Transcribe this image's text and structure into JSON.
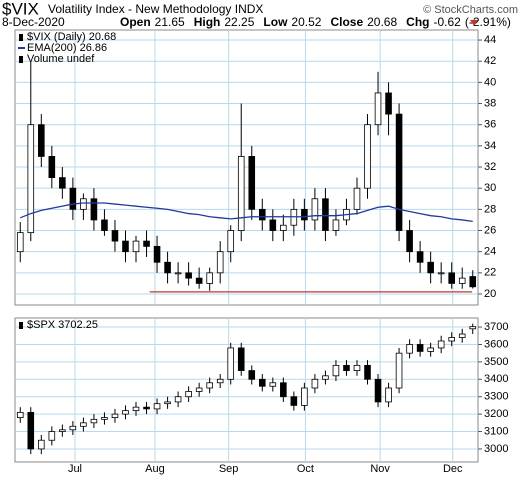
{
  "header": {
    "title": "$VIX",
    "subtitle": "Volatility Index - New Methodology  INDX",
    "credit": "© StockCharts.com",
    "date": "8-Dec-2020",
    "stats": [
      {
        "label": "Open",
        "value": 21.65
      },
      {
        "label": "High",
        "value": 22.25
      },
      {
        "label": "Low",
        "value": 20.52
      },
      {
        "label": "Close",
        "value": 20.68
      },
      {
        "label": "Chg",
        "value": -0.62
      }
    ],
    "change_pct": "(-2.91%)"
  },
  "chart_data": [
    {
      "type": "candlestick",
      "ylim": [
        18.96,
        44.95
      ],
      "yticks": [
        20,
        22,
        24,
        26,
        28,
        30,
        32,
        34,
        36,
        38,
        40,
        42,
        44
      ],
      "xlim": [
        -0.5,
        43.5
      ],
      "xticks": [
        5.2,
        12.8,
        19.8,
        27.1,
        34.2,
        41.1
      ],
      "grid": true,
      "series": [
        {
          "name": "$VIX (Daily) 20.68",
          "color": "#000000",
          "open": [
            24,
            25.8,
            36,
            33,
            31,
            30,
            28,
            29,
            27,
            26,
            25,
            24,
            25,
            24.5,
            23,
            22,
            22,
            21.5,
            21,
            22,
            24,
            26,
            33,
            28,
            27,
            26,
            26.5,
            28,
            27,
            29,
            26,
            27,
            28,
            30,
            36,
            39,
            37,
            26,
            24,
            23,
            22,
            22,
            21,
            21.65
          ],
          "high": [
            26.8,
            42,
            37,
            34,
            32,
            31,
            29.5,
            30,
            28,
            27,
            26,
            25.5,
            26,
            25.5,
            24,
            23,
            23,
            22.5,
            22.5,
            25,
            26.5,
            38,
            34,
            29,
            28,
            27.5,
            29,
            29,
            30,
            30,
            28,
            29,
            31,
            37,
            41,
            40,
            38,
            27,
            25,
            24,
            23,
            23,
            22.5,
            22.25
          ],
          "low": [
            23,
            25,
            32,
            30,
            29,
            27,
            27,
            26,
            25.5,
            24,
            23,
            23,
            23.5,
            22,
            21,
            21,
            20.8,
            20.5,
            20.3,
            21,
            23,
            25,
            27,
            26,
            25,
            25,
            25.5,
            26,
            26,
            25,
            25.5,
            26.5,
            27.5,
            29,
            35,
            35,
            25,
            23,
            22,
            21,
            21,
            20.5,
            20.5,
            20.52
          ],
          "close": [
            25.8,
            36,
            33,
            31,
            30,
            28,
            29,
            27,
            26,
            25,
            24,
            25,
            24.5,
            23,
            22,
            22,
            21.5,
            21,
            22,
            24,
            26,
            33,
            28,
            27,
            26,
            26.5,
            28,
            27,
            29,
            26,
            27,
            28,
            30,
            36,
            39,
            37,
            26,
            24,
            23,
            22,
            22,
            21,
            21.5,
            20.68
          ]
        },
        {
          "name": "EMA(200) 26.86",
          "type": "line",
          "color": "#1f3a9e",
          "values": [
            27.2,
            27.6,
            27.9,
            28.1,
            28.3,
            28.5,
            28.6,
            28.6,
            28.6,
            28.5,
            28.4,
            28.3,
            28.2,
            28.1,
            28.0,
            27.8,
            27.6,
            27.5,
            27.3,
            27.2,
            27.1,
            27.2,
            27.3,
            27.3,
            27.3,
            27.3,
            27.3,
            27.3,
            27.4,
            27.4,
            27.4,
            27.5,
            27.6,
            27.9,
            28.2,
            28.3,
            28.0,
            27.8,
            27.6,
            27.4,
            27.3,
            27.1,
            27.0,
            26.86
          ]
        },
        {
          "name": "Volume undef",
          "type": "none",
          "color": "#000000"
        }
      ],
      "reference_line": {
        "value": 20.2,
        "color": "#c0392b"
      }
    },
    {
      "type": "candlestick",
      "ylim": [
        2925,
        3752
      ],
      "yticks": [
        3000,
        3100,
        3200,
        3300,
        3400,
        3500,
        3600,
        3700
      ],
      "xlim": [
        -0.5,
        43.5
      ],
      "xticks": [
        {
          "value": 5.2,
          "label": "Jul"
        },
        {
          "value": 12.8,
          "label": "Aug"
        },
        {
          "value": 19.8,
          "label": "Sep"
        },
        {
          "value": 27.1,
          "label": "Oct"
        },
        {
          "value": 34.2,
          "label": "Nov"
        },
        {
          "value": 41.1,
          "label": "Dec"
        }
      ],
      "grid": true,
      "series": [
        {
          "name": "$SPX 3702.25",
          "color": "#000000",
          "open": [
            3180,
            3210,
            3000,
            3050,
            3100,
            3110,
            3130,
            3150,
            3170,
            3180,
            3200,
            3220,
            3240,
            3230,
            3260,
            3270,
            3300,
            3330,
            3350,
            3380,
            3400,
            3580,
            3450,
            3400,
            3360,
            3380,
            3300,
            3250,
            3350,
            3400,
            3420,
            3480,
            3450,
            3480,
            3400,
            3270,
            3350,
            3550,
            3600,
            3560,
            3580,
            3620,
            3640,
            3690
          ],
          "high": [
            3240,
            3240,
            3080,
            3130,
            3140,
            3160,
            3180,
            3200,
            3210,
            3230,
            3250,
            3270,
            3270,
            3290,
            3300,
            3330,
            3360,
            3380,
            3410,
            3430,
            3610,
            3610,
            3480,
            3430,
            3410,
            3410,
            3330,
            3380,
            3430,
            3450,
            3510,
            3510,
            3510,
            3510,
            3430,
            3380,
            3580,
            3630,
            3630,
            3610,
            3650,
            3670,
            3690,
            3720
          ],
          "low": [
            3150,
            2970,
            2970,
            3020,
            3070,
            3080,
            3100,
            3120,
            3140,
            3150,
            3170,
            3190,
            3200,
            3200,
            3230,
            3240,
            3270,
            3300,
            3320,
            3350,
            3370,
            3420,
            3370,
            3330,
            3330,
            3270,
            3220,
            3220,
            3320,
            3370,
            3390,
            3420,
            3420,
            3370,
            3240,
            3240,
            3320,
            3520,
            3530,
            3530,
            3550,
            3590,
            3610,
            3660
          ],
          "close": [
            3210,
            3000,
            3050,
            3100,
            3110,
            3130,
            3150,
            3170,
            3180,
            3200,
            3220,
            3240,
            3230,
            3260,
            3270,
            3300,
            3330,
            3350,
            3380,
            3400,
            3580,
            3450,
            3400,
            3360,
            3380,
            3300,
            3250,
            3350,
            3400,
            3420,
            3480,
            3450,
            3480,
            3400,
            3270,
            3350,
            3550,
            3600,
            3560,
            3580,
            3620,
            3640,
            3660,
            3702.25
          ]
        }
      ]
    }
  ]
}
